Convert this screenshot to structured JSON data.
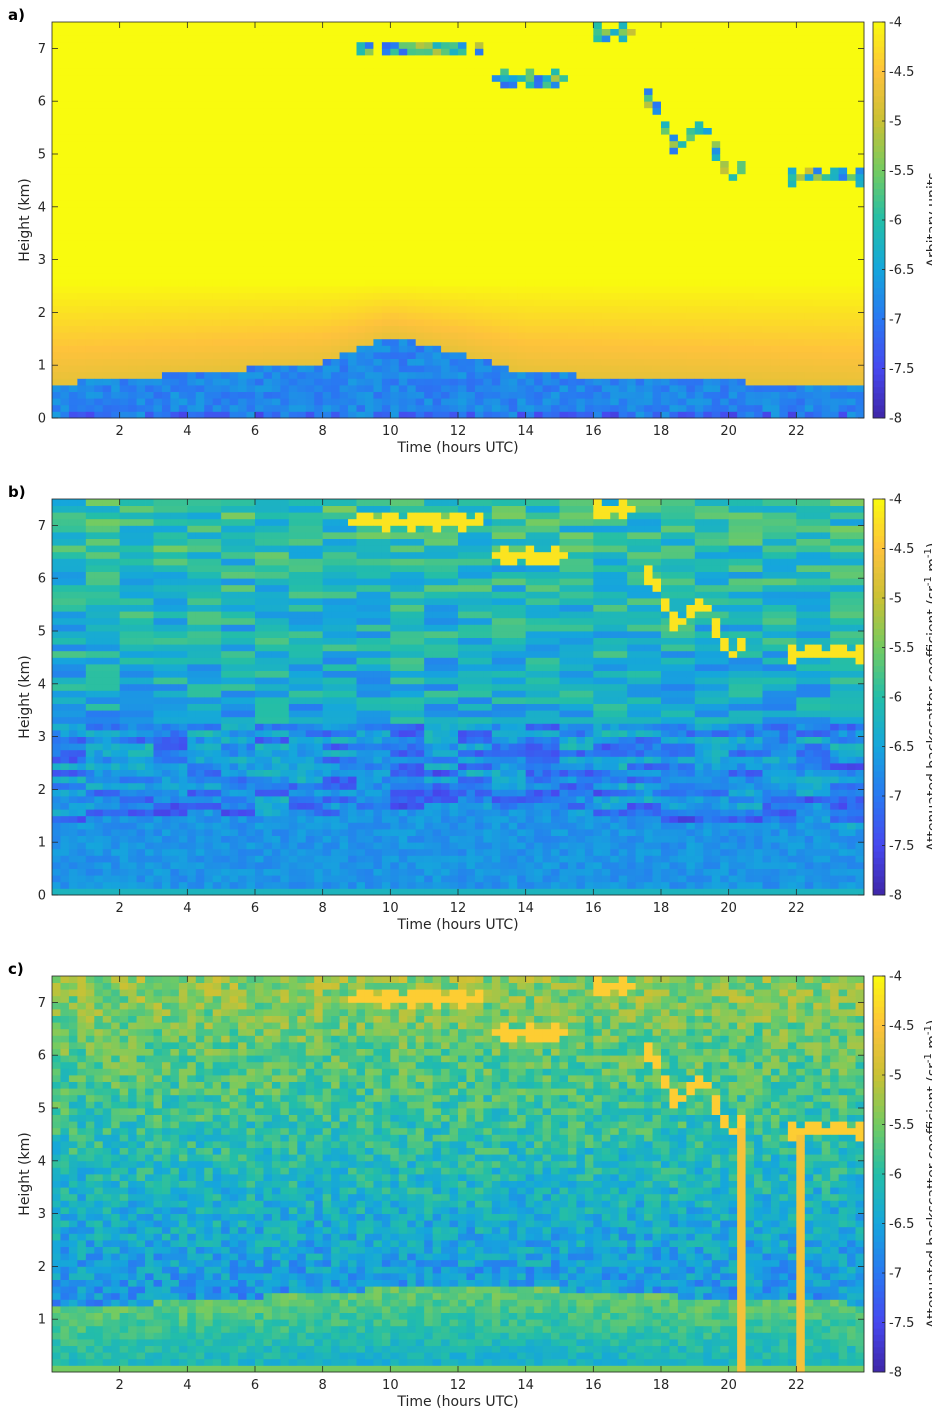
{
  "chart_data": [
    {
      "type": "heatmap",
      "panel_label": "a)",
      "xlabel": "Time (hours UTC)",
      "ylabel": "Height (km)",
      "xlim": [
        0,
        24
      ],
      "ylim": [
        0,
        7.5
      ],
      "x_ticks": [
        2,
        4,
        6,
        8,
        10,
        12,
        14,
        16,
        18,
        20,
        22
      ],
      "y_ticks": [
        0,
        1,
        2,
        3,
        4,
        5,
        6,
        7
      ],
      "colorbar": {
        "label": "Arbitary units",
        "range": [
          -8,
          -4
        ],
        "ticks": [
          -4,
          -4.5,
          -5,
          -5.5,
          -6,
          -6.5,
          -7,
          -7.5,
          -8
        ],
        "colormap": "parula"
      },
      "features": {
        "boundary_layer_top_km": [
          [
            0,
            0.6
          ],
          [
            4,
            0.8
          ],
          [
            8,
            1.0
          ],
          [
            10,
            1.5
          ],
          [
            12,
            1.2
          ],
          [
            14,
            0.8
          ],
          [
            18,
            0.7
          ],
          [
            24,
            0.55
          ]
        ],
        "cloud_layers": [
          {
            "x_start": 8.7,
            "x_end": 12.8,
            "height_km": 7.0
          },
          {
            "x_start": 13.0,
            "x_end": 15.3,
            "height_km": 6.4
          },
          {
            "x_start": 16.0,
            "x_end": 17.3,
            "height_km": 7.3
          },
          {
            "x_start": 17.5,
            "x_end": 20.5,
            "height_km": 5.0
          },
          {
            "x_start": 21.8,
            "x_end": 24.0,
            "height_km": 4.6
          }
        ]
      }
    },
    {
      "type": "heatmap",
      "panel_label": "b)",
      "xlabel": "Time (hours UTC)",
      "ylabel": "Height (km)",
      "xlim": [
        0,
        24
      ],
      "ylim": [
        0,
        7.5
      ],
      "x_ticks": [
        2,
        4,
        6,
        8,
        10,
        12,
        14,
        16,
        18,
        20,
        22
      ],
      "y_ticks": [
        0,
        1,
        2,
        3,
        4,
        5,
        6,
        7
      ],
      "colorbar": {
        "label": "Attenuated backscatter coefficient (sr",
        "label_sup1": "-1",
        "label_mid": " m",
        "label_sup2": "-1",
        "label_end": ")",
        "range": [
          -8,
          -4
        ],
        "ticks": [
          -4,
          -4.5,
          -5,
          -5.5,
          -6,
          -6.5,
          -7,
          -7.5,
          -8
        ],
        "colormap": "parula"
      },
      "features": {
        "boundary_layer_top_km": [
          [
            0,
            1.4
          ],
          [
            8,
            1.55
          ],
          [
            10,
            1.6
          ],
          [
            14,
            1.6
          ],
          [
            18,
            1.4
          ],
          [
            24,
            1.3
          ]
        ],
        "cloud_layers": [
          {
            "x_start": 8.7,
            "x_end": 12.8,
            "height_km": 7.1
          },
          {
            "x_start": 13.0,
            "x_end": 15.3,
            "height_km": 6.4
          },
          {
            "x_start": 16.0,
            "x_end": 17.3,
            "height_km": 7.3
          },
          {
            "x_start": 17.5,
            "x_end": 20.5,
            "height_km": 5.0
          },
          {
            "x_start": 21.8,
            "x_end": 24.0,
            "height_km": 4.6
          }
        ]
      }
    },
    {
      "type": "heatmap",
      "panel_label": "c)",
      "xlabel": "Time (hours UTC)",
      "ylabel": "Height (km)",
      "xlim": [
        0,
        24
      ],
      "ylim": [
        0,
        7.5
      ],
      "x_ticks": [
        2,
        4,
        6,
        8,
        10,
        12,
        14,
        16,
        18,
        20,
        22
      ],
      "y_ticks": [
        1,
        2,
        3,
        4,
        5,
        6,
        7
      ],
      "colorbar": {
        "label": "Attenuated backscatter coefficient (sr",
        "label_sup1": "-1",
        "label_mid": " m",
        "label_sup2": "-1",
        "label_end": ")",
        "range": [
          -8,
          -4
        ],
        "ticks": [
          -4,
          -4.5,
          -5,
          -5.5,
          -6,
          -6.5,
          -7,
          -7.5,
          -8
        ],
        "colormap": "parula"
      },
      "features": {
        "boundary_layer_top_km": [
          [
            0,
            1.2
          ],
          [
            8,
            1.5
          ],
          [
            10,
            1.6
          ],
          [
            14,
            1.6
          ],
          [
            18,
            1.45
          ],
          [
            24,
            1.3
          ]
        ],
        "cloud_layers": [
          {
            "x_start": 8.7,
            "x_end": 12.8,
            "height_km": 7.1
          },
          {
            "x_start": 13.0,
            "x_end": 15.3,
            "height_km": 6.4
          },
          {
            "x_start": 16.0,
            "x_end": 17.3,
            "height_km": 7.3
          },
          {
            "x_start": 17.5,
            "x_end": 20.5,
            "height_km": 5.0
          },
          {
            "x_start": 21.8,
            "x_end": 24.0,
            "height_km": 4.6
          }
        ],
        "precipitation_streaks": [
          {
            "x": 20.3,
            "top_km": 4.6
          },
          {
            "x": 22.2,
            "top_km": 4.6
          }
        ]
      }
    }
  ]
}
